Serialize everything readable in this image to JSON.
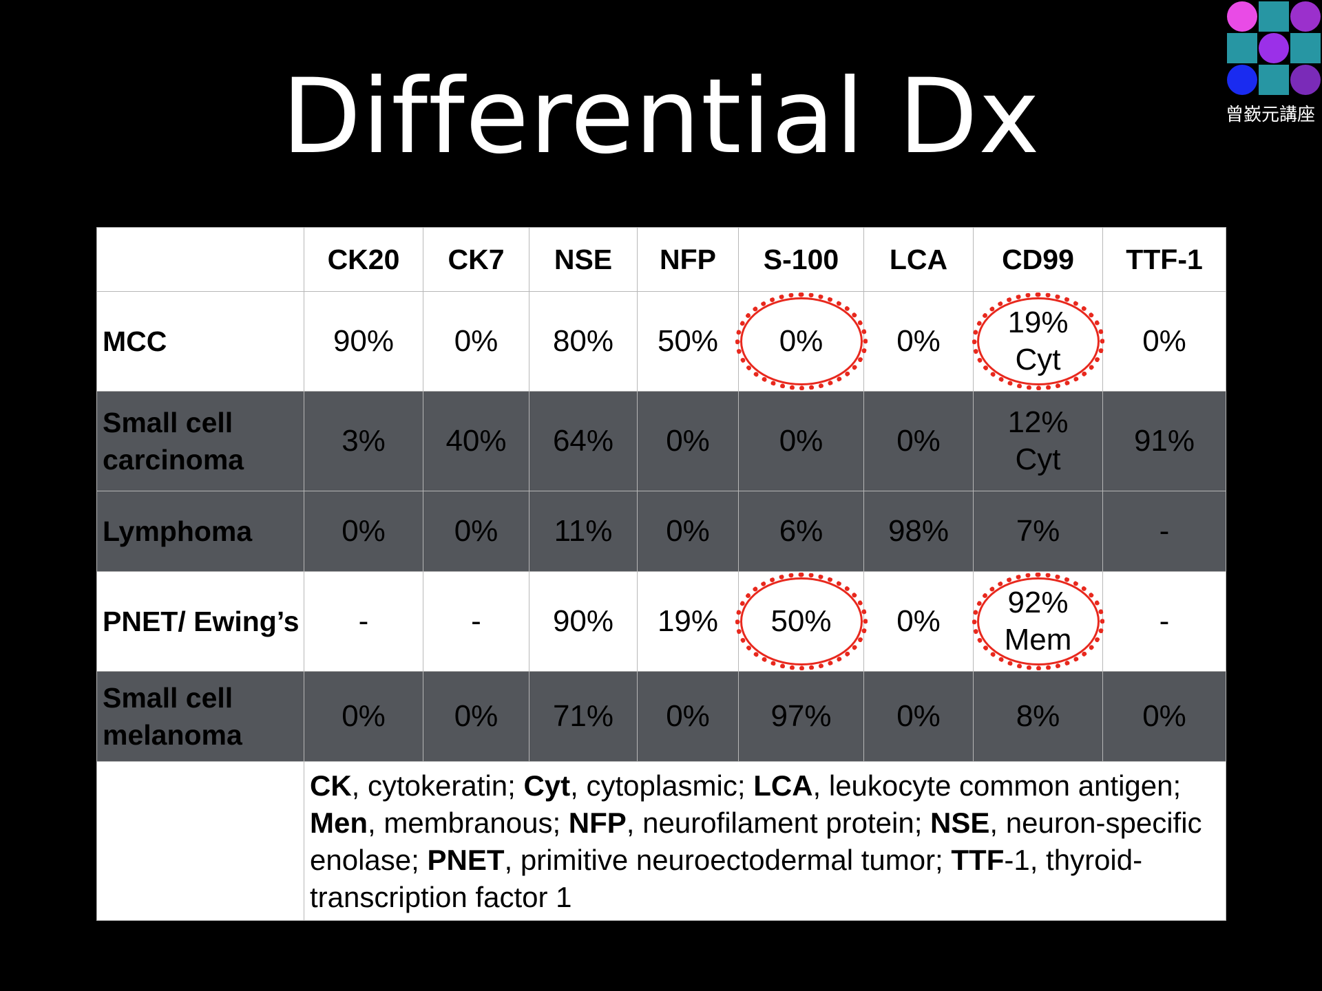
{
  "title": "Differential Dx",
  "logo": {
    "text": "曾嶔元講座",
    "colors": [
      "#e94be6",
      "#2796a3",
      "#9b30cc",
      "#1a2bf0",
      "#7a2bb8"
    ]
  },
  "table": {
    "columns": [
      "CK20",
      "CK7",
      "NSE",
      "NFP",
      "S-100",
      "LCA",
      "CD99",
      "TTF-1"
    ],
    "rows": [
      {
        "label": "MCC",
        "cells": [
          "90%",
          "0%",
          "80%",
          "50%",
          "0%",
          "0%",
          "19%\nCyt",
          "0%"
        ],
        "style": "light"
      },
      {
        "label": "Small cell carcinoma",
        "cells": [
          "3%",
          "40%",
          "64%",
          "0%",
          "0%",
          "0%",
          "12%\nCyt",
          "91%"
        ],
        "style": "dark"
      },
      {
        "label": "Lymphoma",
        "cells": [
          "0%",
          "0%",
          "11%",
          "0%",
          "6%",
          "98%",
          "7%",
          "-"
        ],
        "style": "dark"
      },
      {
        "label": "PNET/ Ewing’s",
        "cells": [
          "-",
          "-",
          "90%",
          "19%",
          "50%",
          "0%",
          "92%\nMem",
          "-"
        ],
        "style": "light"
      },
      {
        "label": "Small cell melanoma",
        "cells": [
          "0%",
          "0%",
          "71%",
          "0%",
          "97%",
          "0%",
          "8%",
          "0%"
        ],
        "style": "dark"
      }
    ],
    "circled": [
      "MCC:S-100",
      "MCC:CD99",
      "PNET/ Ewing’s:S-100",
      "PNET/ Ewing’s:CD99"
    ],
    "circle_color": "#e8281d",
    "footnote": [
      {
        "b": "CK"
      },
      {
        "t": ", cytokeratin; "
      },
      {
        "b": "Cyt"
      },
      {
        "t": ", cytoplasmic; "
      },
      {
        "b": "LCA"
      },
      {
        "t": ", leukocyte common antigen; "
      },
      {
        "b": "Men"
      },
      {
        "t": ", membranous; "
      },
      {
        "b": "NFP"
      },
      {
        "t": ", neurofilament protein; "
      },
      {
        "b": "NSE"
      },
      {
        "t": ", neuron-specific enolase; "
      },
      {
        "b": "PNET"
      },
      {
        "t": ", primitive neuroectodermal tumor; "
      },
      {
        "b": "TTF"
      },
      {
        "t": "-1, thyroid-transcription factor 1"
      }
    ]
  }
}
